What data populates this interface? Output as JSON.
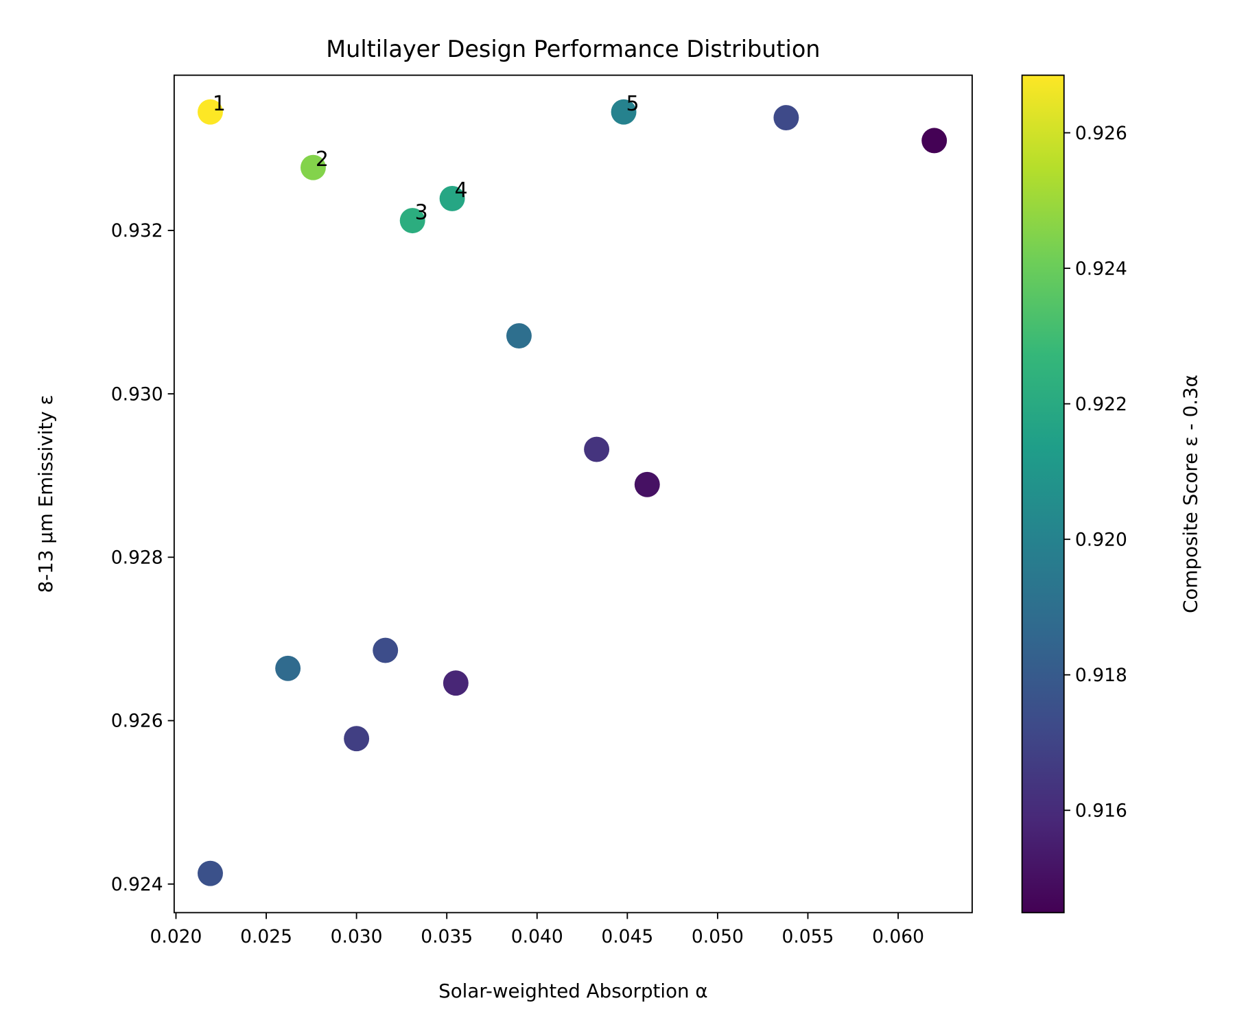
{
  "chart_data": {
    "type": "scatter",
    "title": "Multilayer Design Performance Distribution",
    "xlabel": "Solar-weighted Absorption α",
    "ylabel": "8-13 µm Emissivity ε",
    "colorbar_label": "Composite Score ε - 0.3α",
    "xlim": [
      0.0199,
      0.0641
    ],
    "ylim": [
      0.92365,
      0.9339
    ],
    "xticks": [
      "0.020",
      "0.025",
      "0.030",
      "0.035",
      "0.040",
      "0.045",
      "0.050",
      "0.055",
      "0.060"
    ],
    "yticks": [
      "0.924",
      "0.926",
      "0.928",
      "0.930",
      "0.932"
    ],
    "colorbar_range": [
      0.91449,
      0.92685
    ],
    "colorbar_ticks": [
      "0.916",
      "0.918",
      "0.920",
      "0.922",
      "0.924",
      "0.926"
    ],
    "colormap": "viridis",
    "grid": false,
    "points": [
      {
        "x": 0.0219,
        "y": 0.93345,
        "score": 0.92688,
        "label": "1"
      },
      {
        "x": 0.0276,
        "y": 0.93277,
        "score": 0.9245,
        "label": "2"
      },
      {
        "x": 0.0331,
        "y": 0.93212,
        "score": 0.92219,
        "label": "3"
      },
      {
        "x": 0.0353,
        "y": 0.93239,
        "score": 0.92181,
        "label": "4"
      },
      {
        "x": 0.0448,
        "y": 0.93345,
        "score": 0.92,
        "label": "5"
      },
      {
        "x": 0.0538,
        "y": 0.93338,
        "score": 0.91724
      },
      {
        "x": 0.062,
        "y": 0.9331,
        "score": 0.91451
      },
      {
        "x": 0.039,
        "y": 0.93071,
        "score": 0.919
      },
      {
        "x": 0.0433,
        "y": 0.92932,
        "score": 0.91634
      },
      {
        "x": 0.0461,
        "y": 0.92889,
        "score": 0.91506
      },
      {
        "x": 0.0262,
        "y": 0.92664,
        "score": 0.91879
      },
      {
        "x": 0.0316,
        "y": 0.92686,
        "score": 0.91739
      },
      {
        "x": 0.0355,
        "y": 0.92646,
        "score": 0.9158
      },
      {
        "x": 0.03,
        "y": 0.92578,
        "score": 0.91678
      },
      {
        "x": 0.0219,
        "y": 0.92413,
        "score": 0.91757
      }
    ]
  }
}
